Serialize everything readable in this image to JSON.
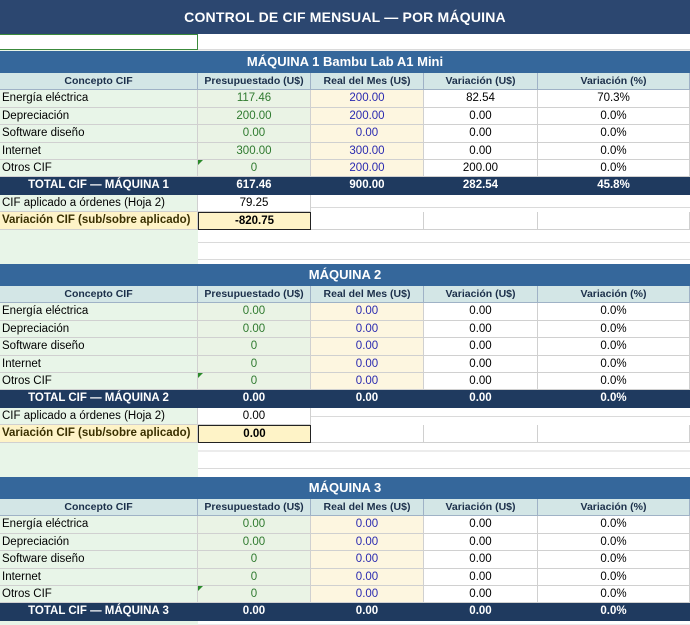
{
  "sheet": {
    "title": "CONTROL DE CIF MENSUAL — POR MÁQUINA",
    "columns": [
      "Concepto CIF",
      "Presupuestado (U$)",
      "Real del Mes (U$)",
      "Variación (U$)",
      "Variación (%)"
    ],
    "applied_label": "CIF aplicado a órdenes (Hoja 2)",
    "variance_label": "Variación CIF (sub/sobre aplicado)"
  },
  "machines": [
    {
      "title": "MÁQUINA 1 Bambu Lab A1 Mini",
      "rows": [
        {
          "concept": "Energía eléctrica",
          "budget": "117.46",
          "actual": "200.00",
          "var": "82.54",
          "pct": "70.3%"
        },
        {
          "concept": "Depreciación",
          "budget": "200.00",
          "actual": "200.00",
          "var": "0.00",
          "pct": "0.0%"
        },
        {
          "concept": "Software diseño",
          "budget": "0.00",
          "actual": "0.00",
          "var": "0.00",
          "pct": "0.0%"
        },
        {
          "concept": "Internet",
          "budget": "300.00",
          "actual": "300.00",
          "var": "0.00",
          "pct": "0.0%"
        },
        {
          "concept": "Otros CIF",
          "budget": "0",
          "actual": "200.00",
          "var": "200.00",
          "pct": "0.0%"
        }
      ],
      "total": {
        "label": "TOTAL CIF — MÁQUINA 1",
        "budget": "617.46",
        "actual": "900.00",
        "var": "282.54",
        "pct": "45.8%"
      },
      "applied": "79.25",
      "variance": "-820.75"
    },
    {
      "title": "MÁQUINA 2",
      "rows": [
        {
          "concept": "Energía eléctrica",
          "budget": "0.00",
          "actual": "0.00",
          "var": "0.00",
          "pct": "0.0%"
        },
        {
          "concept": "Depreciación",
          "budget": "0.00",
          "actual": "0.00",
          "var": "0.00",
          "pct": "0.0%"
        },
        {
          "concept": "Software diseño",
          "budget": "0",
          "actual": "0.00",
          "var": "0.00",
          "pct": "0.0%"
        },
        {
          "concept": "Internet",
          "budget": "0",
          "actual": "0.00",
          "var": "0.00",
          "pct": "0.0%"
        },
        {
          "concept": "Otros CIF",
          "budget": "0",
          "actual": "0.00",
          "var": "0.00",
          "pct": "0.0%"
        }
      ],
      "total": {
        "label": "TOTAL CIF — MÁQUINA 2",
        "budget": "0.00",
        "actual": "0.00",
        "var": "0.00",
        "pct": "0.0%"
      },
      "applied": "0.00",
      "variance": "0.00"
    },
    {
      "title": "MÁQUINA 3",
      "rows": [
        {
          "concept": "Energía eléctrica",
          "budget": "0.00",
          "actual": "0.00",
          "var": "0.00",
          "pct": "0.0%"
        },
        {
          "concept": "Depreciación",
          "budget": "0.00",
          "actual": "0.00",
          "var": "0.00",
          "pct": "0.0%"
        },
        {
          "concept": "Software diseño",
          "budget": "0",
          "actual": "0.00",
          "var": "0.00",
          "pct": "0.0%"
        },
        {
          "concept": "Internet",
          "budget": "0",
          "actual": "0.00",
          "var": "0.00",
          "pct": "0.0%"
        },
        {
          "concept": "Otros CIF",
          "budget": "0",
          "actual": "0.00",
          "var": "0.00",
          "pct": "0.0%"
        }
      ],
      "total": {
        "label": "TOTAL CIF — MÁQUINA 3",
        "budget": "0.00",
        "actual": "0.00",
        "var": "0.00",
        "pct": "0.0%"
      }
    }
  ],
  "colors": {
    "title_bg": "#2c4770",
    "machine_header_bg": "#35679b",
    "total_bg": "#1f3a5f",
    "budget_text": "#2f7a2f",
    "actual_text": "#2a2ab0",
    "variance_cell_bg": "#fef3c7"
  }
}
